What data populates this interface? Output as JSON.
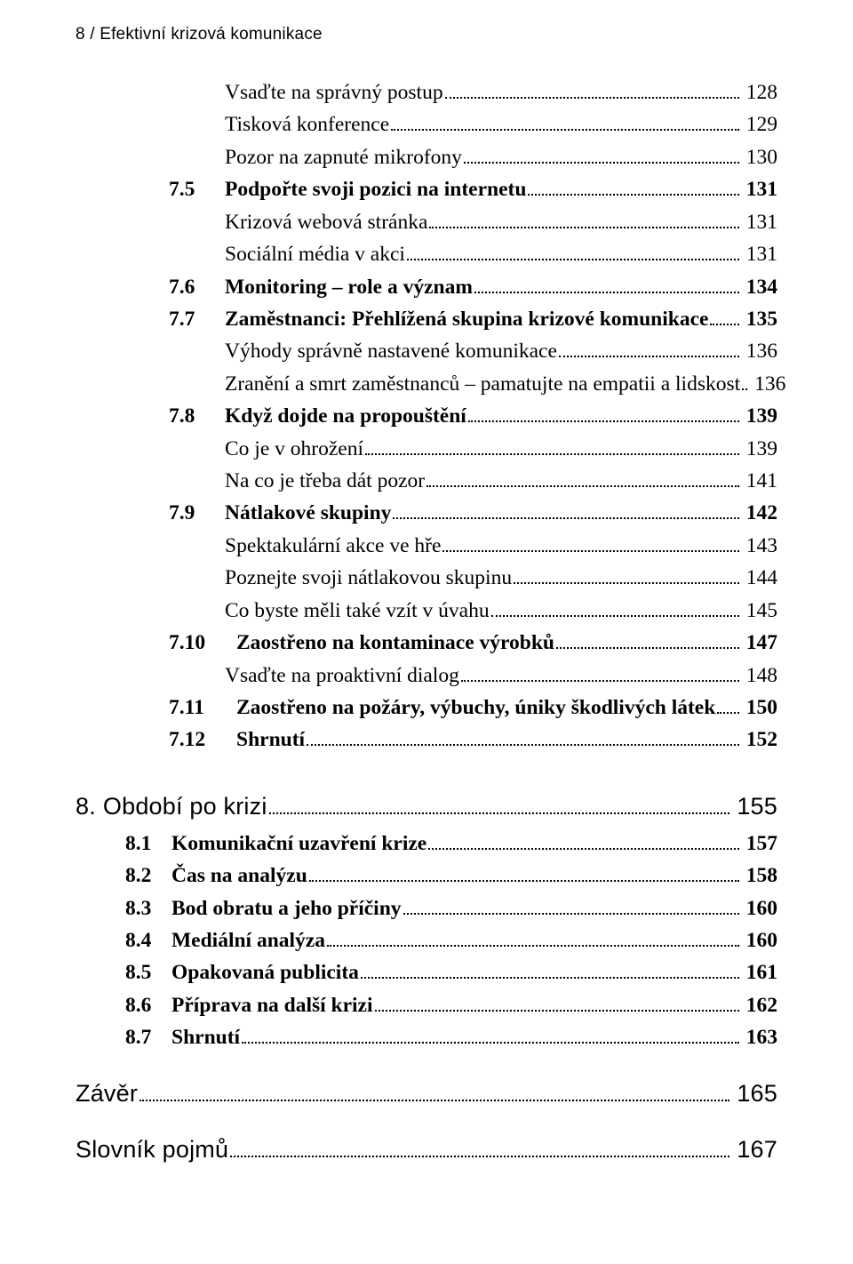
{
  "colors": {
    "text": "#000000",
    "background": "#ffffff"
  },
  "typography": {
    "body_family": "Times New Roman / serif",
    "body_size_pt": 12.5,
    "header_family": "Segoe UI / Myriad Pro / sans-serif",
    "chapter_size_pt": 14
  },
  "running_header": "8 / Efektivní krizová komunikace",
  "entries": [
    {
      "kind": "sub",
      "title": "Vsaďte na správný postup",
      "page": "128"
    },
    {
      "kind": "sub",
      "title": "Tisková konference",
      "page": "129"
    },
    {
      "kind": "sub",
      "title": "Pozor na zapnuté mikrofony",
      "page": "130"
    },
    {
      "kind": "section",
      "num": "7.5",
      "title": "Podpořte svoji pozici na internetu",
      "page": "131"
    },
    {
      "kind": "sub",
      "title": "Krizová webová stránka",
      "page": "131"
    },
    {
      "kind": "sub",
      "title": "Sociální média v akci",
      "page": "131"
    },
    {
      "kind": "section",
      "num": "7.6",
      "title": "Monitoring – role a význam",
      "page": "134"
    },
    {
      "kind": "section",
      "num": "7.7",
      "title": "Zaměstnanci: Přehlížená skupina krizové komunikace",
      "page": "135"
    },
    {
      "kind": "sub",
      "title": "Výhody správně nastavené komunikace",
      "page": "136"
    },
    {
      "kind": "sub",
      "title": "Zranění a smrt zaměstnanců – pamatujte na empatii a lidskost",
      "page": "136"
    },
    {
      "kind": "section",
      "num": "7.8",
      "title": "Když dojde na propouštění",
      "page": "139"
    },
    {
      "kind": "sub",
      "title": "Co je v ohrožení",
      "page": "139"
    },
    {
      "kind": "sub",
      "title": "Na co je třeba dát pozor",
      "page": "141"
    },
    {
      "kind": "section",
      "num": "7.9",
      "title": "Nátlakové skupiny",
      "page": "142"
    },
    {
      "kind": "sub",
      "title": "Spektakulární akce ve hře",
      "page": "143"
    },
    {
      "kind": "sub",
      "title": "Poznejte svoji nátlakovou skupinu",
      "page": "144"
    },
    {
      "kind": "sub",
      "title": "Co byste měli také vzít v úvahu",
      "page": "145"
    },
    {
      "kind": "sectionW",
      "num": "7.10",
      "title": "Zaostřeno na kontaminace výrobků",
      "page": "147"
    },
    {
      "kind": "sub",
      "title": "Vsaďte na proaktivní dialog",
      "page": "148"
    },
    {
      "kind": "sectionW",
      "num": "7.11",
      "title": "Zaostřeno na požáry, výbuchy, úniky škodlivých látek",
      "page": "150"
    },
    {
      "kind": "sectionW",
      "num": "7.12",
      "title": "Shrnutí",
      "page": "152"
    },
    {
      "kind": "chapter",
      "num": "8.",
      "title": "Období po krizi",
      "page": "155"
    },
    {
      "kind": "chsub",
      "num": "8.1",
      "title": "Komunikační uzavření krize",
      "page": "157"
    },
    {
      "kind": "chsub",
      "num": "8.2",
      "title": "Čas na analýzu",
      "page": "158"
    },
    {
      "kind": "chsub",
      "num": "8.3",
      "title": "Bod obratu a jeho příčiny",
      "page": "160"
    },
    {
      "kind": "chsub",
      "num": "8.4",
      "title": "Mediální analýza",
      "page": "160"
    },
    {
      "kind": "chsub",
      "num": "8.5",
      "title": "Opakovaná publicita",
      "page": "161"
    },
    {
      "kind": "chsub",
      "num": "8.6",
      "title": "Příprava na další krizi",
      "page": "162"
    },
    {
      "kind": "chsub",
      "num": "8.7",
      "title": "Shrnutí",
      "page": "163"
    },
    {
      "kind": "chapter-plain",
      "title": "Závěr",
      "page": "165"
    },
    {
      "kind": "chapter-plain",
      "title": "Slovník pojmů",
      "page": "167"
    }
  ]
}
